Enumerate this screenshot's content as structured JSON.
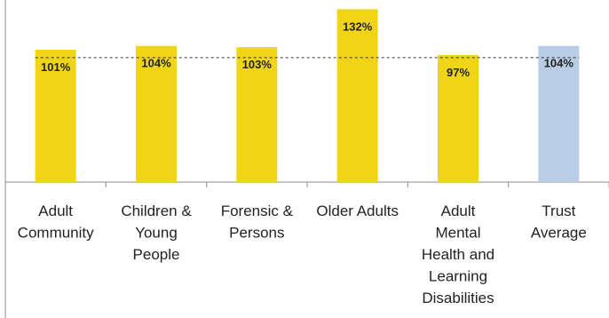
{
  "chart_data": {
    "type": "bar",
    "categories": [
      [
        "Adult",
        "Community"
      ],
      [
        "Children &",
        "Young",
        "People"
      ],
      [
        "Forensic &",
        "Persons"
      ],
      [
        "Older Adults"
      ],
      [
        "Adult",
        "Mental",
        "Health and",
        "Learning",
        "Disabilities"
      ],
      [
        "Trust",
        "Average"
      ]
    ],
    "values": [
      101,
      104,
      103,
      132,
      97,
      104
    ],
    "data_labels": [
      "101%",
      "104%",
      "103%",
      "132%",
      "97%",
      "104%"
    ],
    "bar_colors": [
      "#f0d516",
      "#f0d516",
      "#f0d516",
      "#f0d516",
      "#f0d516",
      "#b9cde5"
    ],
    "reference_line": {
      "value": 95,
      "style": "dashed",
      "color": "#333333"
    },
    "ylim": [
      0,
      139
    ],
    "title": "",
    "xlabel": "",
    "ylabel": "",
    "grid": false,
    "legend": "none"
  }
}
